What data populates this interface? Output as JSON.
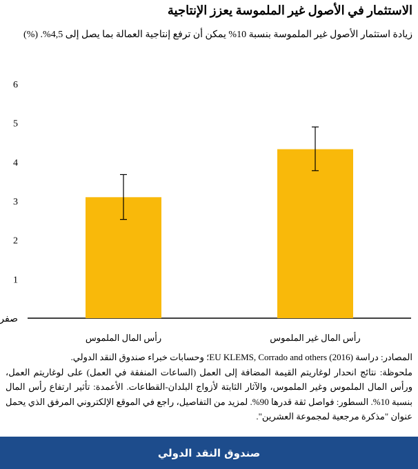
{
  "header": {
    "title": "الاستثمار في الأصول غير الملموسة يعزز الإنتاجية",
    "subtitle": "زيادة استثمار الأصول غير الملموسة بنسبة 10% يمكن أن ترفع إنتاجية العمالة بما يصل إلى 4,5%. (%)"
  },
  "chart_data": {
    "type": "bar",
    "categories": [
      "رأس المال الملموس",
      "رأس المال غير الملموس"
    ],
    "values": [
      3.1,
      4.33
    ],
    "error_low": [
      2.53,
      3.78
    ],
    "error_high": [
      3.68,
      4.9
    ],
    "ylim": [
      0,
      6
    ],
    "yticks": [
      "صفر",
      "1",
      "2",
      "3",
      "4",
      "5",
      "6"
    ],
    "bar_color": "#f9b90a",
    "grid": false
  },
  "notes": {
    "sources": "المصادر: دراسة (2016) EU KLEMS, Corrado and others؛ وحسابات خبراء صندوق النقد الدولي.",
    "note": "ملحوظة: نتائج انحدار لوغاريتم القيمة المضافة إلى العمل (الساعات المنفقة في العمل) على لوغاريتم العمل، ورأس المال الملموس وغير الملموس، والآثار الثابتة لأزواج البلدان-القطاعات. الأعمدة: تأثير ارتفاع رأس المال بنسبة 10%. السطور: فواصل ثقة قدرها 90%. لمزيد من التفاصيل، راجع في الموقع الإلكتروني المرفق الذي يحمل عنوان \"مذكرة مرجعية لمجموعة العشرين\"."
  },
  "footer": {
    "label": "صندوق النقد الدولي",
    "bg_color": "#1d4c8c"
  }
}
